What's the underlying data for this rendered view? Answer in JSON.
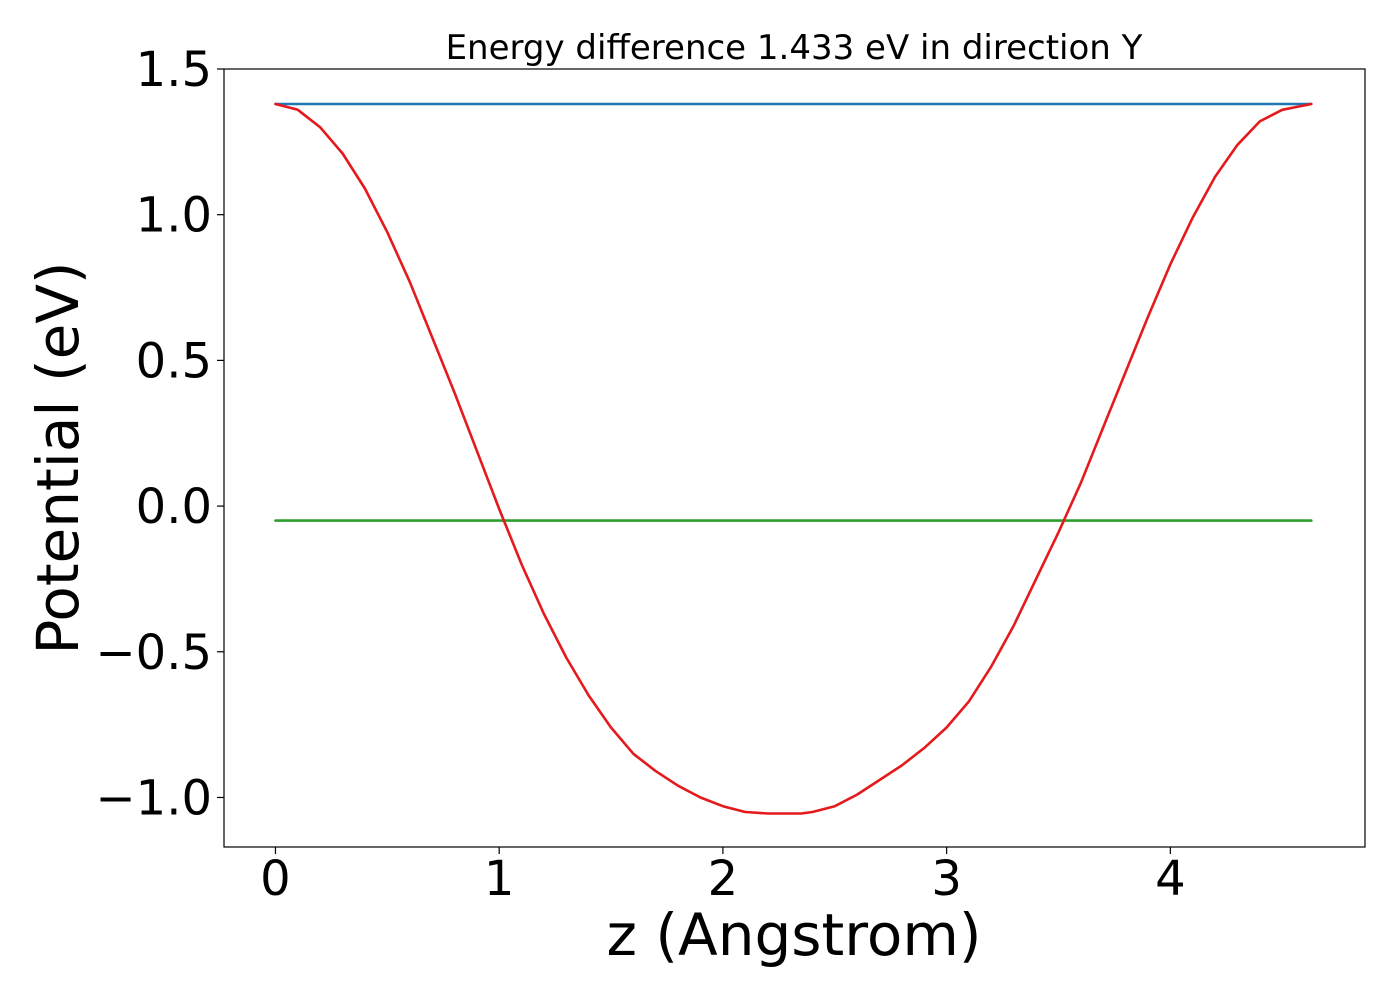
{
  "chart_data": {
    "type": "line",
    "title": "Energy difference 1.433 eV in direction Y",
    "xlabel": "z (Angstrom)",
    "ylabel": "Potential (eV)",
    "xlim": [
      -0.23,
      4.87
    ],
    "ylim": [
      -1.17,
      1.5
    ],
    "xticks": [
      0,
      1,
      2,
      3,
      4
    ],
    "xtick_labels": [
      "0",
      "1",
      "2",
      "3",
      "4"
    ],
    "yticks": [
      1.5,
      1.0,
      0.5,
      0.0,
      -0.5,
      -1.0
    ],
    "ytick_labels": [
      "1.5",
      "1.0",
      "0.5",
      "0.0",
      "−0.5",
      "−1.0"
    ],
    "grid": false,
    "legend": "none",
    "series": [
      {
        "color": "#1f77b4",
        "x": [
          0.0,
          4.63
        ],
        "y": [
          1.38,
          1.38
        ]
      },
      {
        "color": "#2ca02c",
        "x": [
          0.0,
          4.63
        ],
        "y": [
          -0.05,
          -0.05
        ]
      },
      {
        "color": "#e41a1c",
        "x": [
          0.0,
          0.1,
          0.2,
          0.3,
          0.4,
          0.5,
          0.6,
          0.7,
          0.8,
          0.9,
          1.0,
          1.1,
          1.2,
          1.3,
          1.4,
          1.5,
          1.6,
          1.7,
          1.8,
          1.9,
          2.0,
          2.1,
          2.2,
          2.3,
          2.35,
          2.4,
          2.5,
          2.6,
          2.7,
          2.8,
          2.9,
          3.0,
          3.1,
          3.2,
          3.3,
          3.4,
          3.5,
          3.6,
          3.7,
          3.8,
          3.9,
          4.0,
          4.1,
          4.2,
          4.3,
          4.4,
          4.5,
          4.63
        ],
        "y": [
          1.38,
          1.36,
          1.3,
          1.21,
          1.09,
          0.94,
          0.77,
          0.58,
          0.39,
          0.19,
          -0.01,
          -0.2,
          -0.37,
          -0.52,
          -0.65,
          -0.76,
          -0.85,
          -0.91,
          -0.96,
          -1.0,
          -1.03,
          -1.05,
          -1.055,
          -1.055,
          -1.055,
          -1.05,
          -1.03,
          -0.99,
          -0.94,
          -0.89,
          -0.83,
          -0.76,
          -0.67,
          -0.55,
          -0.41,
          -0.25,
          -0.09,
          0.08,
          0.27,
          0.46,
          0.65,
          0.83,
          0.99,
          1.13,
          1.24,
          1.32,
          1.36,
          1.38
        ]
      }
    ]
  }
}
